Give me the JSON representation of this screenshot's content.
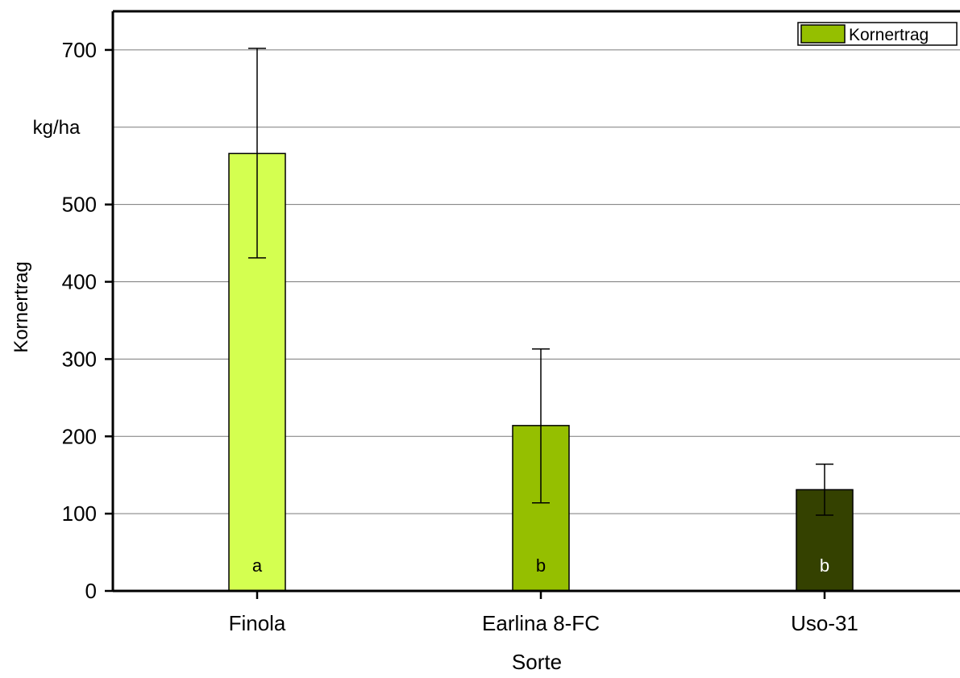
{
  "chart_data": {
    "type": "bar",
    "categories": [
      "Finola",
      "Earlina 8-FC",
      "Uso-31"
    ],
    "series": [
      {
        "name": "Kornertrag",
        "values": [
          566,
          214,
          131
        ],
        "error": [
          {
            "low": 431,
            "high": 702
          },
          {
            "low": 114,
            "high": 313
          },
          {
            "low": 98,
            "high": 164
          }
        ]
      }
    ],
    "bar_colors": [
      "#d4ff50",
      "#95bf00",
      "#344100"
    ],
    "legend_swatch_color": "#95bf00",
    "significance_labels": [
      "a",
      "b",
      "b"
    ],
    "significance_label_colors": [
      "#000000",
      "#000000",
      "#ffffff"
    ],
    "ylim": [
      0,
      750
    ],
    "yticks": [
      0,
      100,
      200,
      300,
      400,
      500,
      700
    ],
    "gridlines_at": [
      100,
      200,
      300,
      400,
      500,
      600,
      700
    ],
    "unit_label": "kg/ha",
    "ylabel": "Kornertrag",
    "xlabel": "Sorte",
    "legend": {
      "label": "Kornertrag",
      "position": "top-right"
    },
    "grid": true
  }
}
